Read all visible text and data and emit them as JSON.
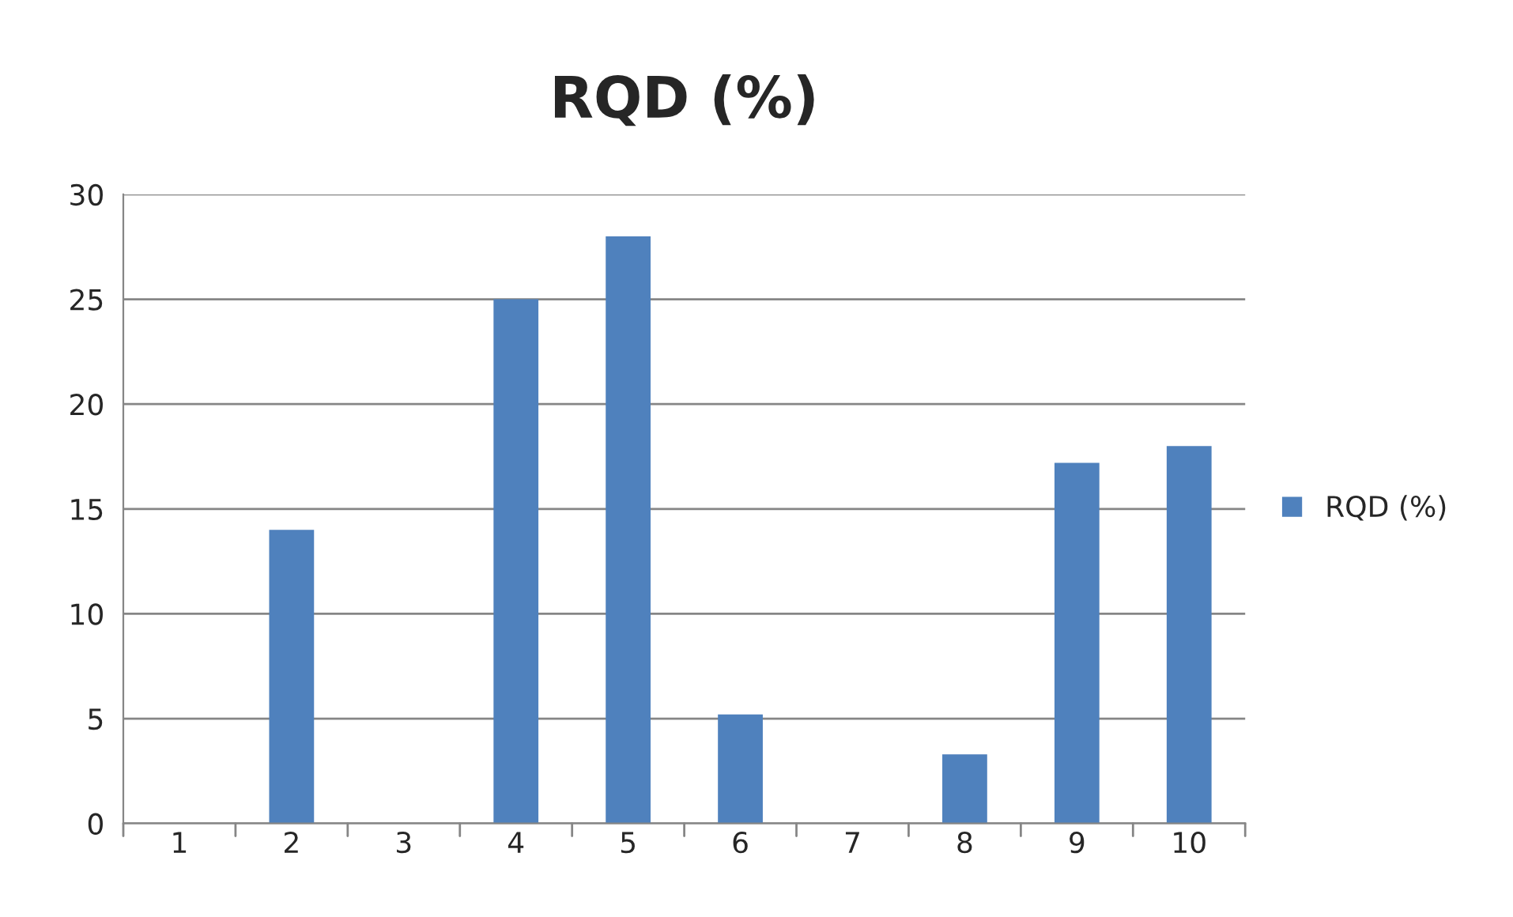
{
  "chart_data": {
    "type": "bar",
    "title": "RQD (%)",
    "categories": [
      "1",
      "2",
      "3",
      "4",
      "5",
      "6",
      "7",
      "8",
      "9",
      "10"
    ],
    "series": [
      {
        "name": "RQD (%)",
        "color": "#4f81bd",
        "values": [
          0,
          14,
          0,
          25,
          28,
          5.2,
          0,
          3.3,
          17.2,
          18
        ]
      }
    ],
    "ylim": [
      0,
      30
    ],
    "yticks": [
      0,
      5,
      10,
      15,
      20,
      25,
      30
    ],
    "grid": "y",
    "legend": "right"
  }
}
